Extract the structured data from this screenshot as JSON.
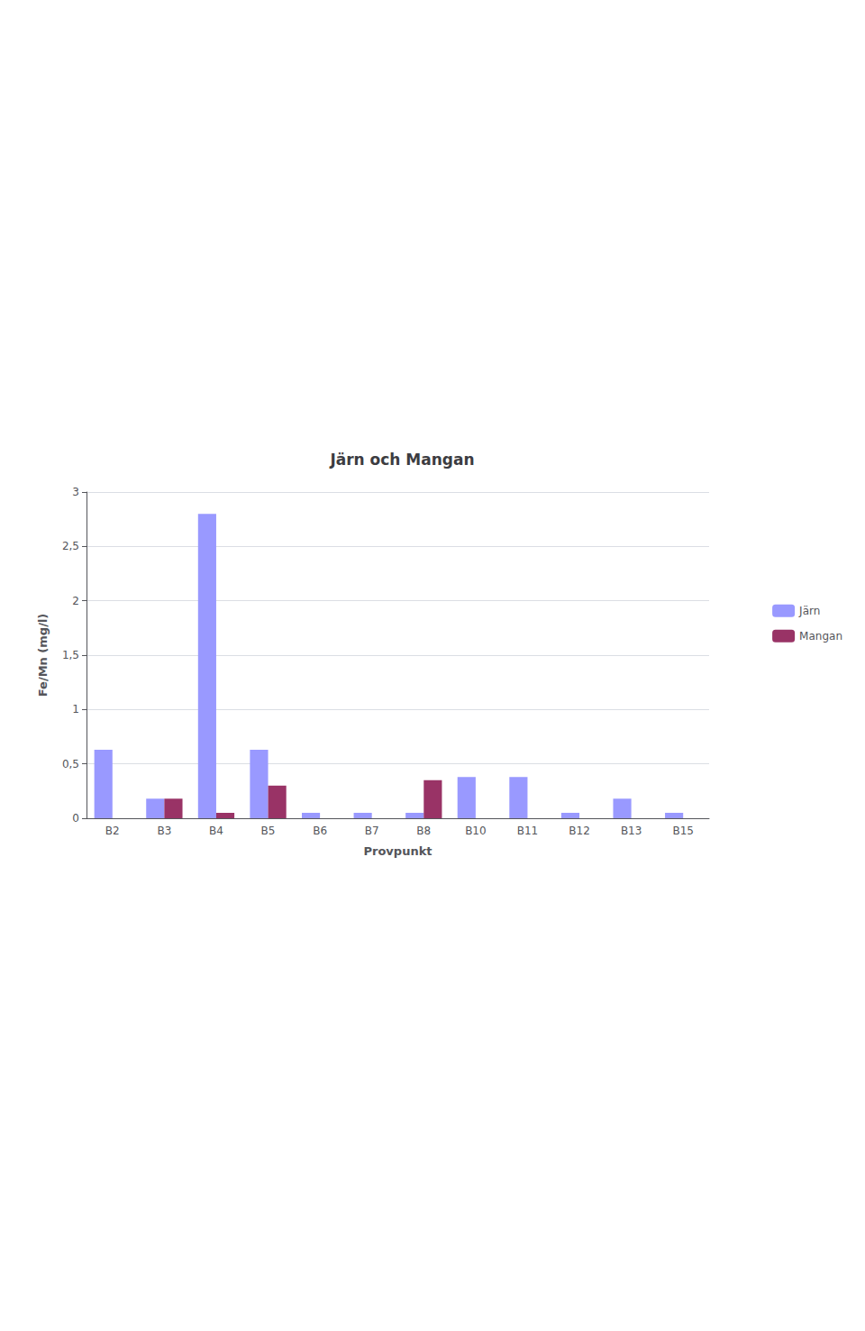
{
  "chart_data": {
    "type": "bar",
    "title": "Järn och Mangan",
    "xlabel": "Provpunkt",
    "ylabel": "Fe/Mn (mg/l)",
    "categories": [
      "B2",
      "B3",
      "B4",
      "B5",
      "B6",
      "B7",
      "B8",
      "B10",
      "B11",
      "B12",
      "B13",
      "B15"
    ],
    "series": [
      {
        "name": "Järn",
        "color": "#9999FF",
        "values": [
          0.63,
          0.18,
          2.8,
          0.63,
          0.05,
          0.05,
          0.05,
          0.38,
          0.38,
          0.05,
          0.18,
          0.05
        ]
      },
      {
        "name": "Mangan",
        "color": "#993366",
        "values": [
          0.0,
          0.18,
          0.05,
          0.3,
          0.0,
          0.0,
          0.35,
          0.0,
          0.0,
          0.0,
          0.0,
          0.0
        ]
      }
    ],
    "ylim": [
      0,
      3
    ],
    "yticks": [
      0,
      {
        "value": 0.5,
        "label": "0,5"
      },
      1,
      {
        "value": 1.5,
        "label": "1,5"
      },
      2,
      {
        "value": 2.5,
        "label": "2,5"
      },
      3
    ],
    "grid": true,
    "legend": "right"
  }
}
